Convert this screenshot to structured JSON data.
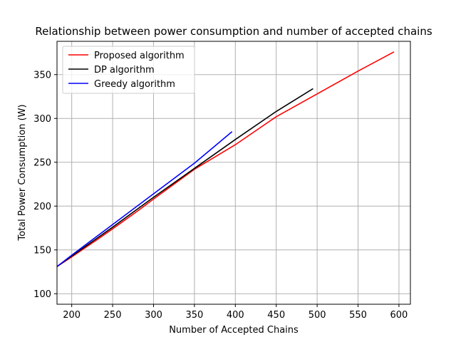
{
  "chart_data": {
    "type": "line",
    "title": "Relationship between power consumption and number of accepted chains",
    "xlabel": "Number of Accepted Chains",
    "ylabel": "Total Power Consumption (W)",
    "xlim": [
      182,
      614
    ],
    "ylim": [
      88,
      388
    ],
    "xticks": [
      200,
      250,
      300,
      350,
      400,
      450,
      500,
      550,
      600
    ],
    "yticks": [
      100,
      150,
      200,
      250,
      300,
      350
    ],
    "grid": true,
    "legend_position": "top-left",
    "series": [
      {
        "name": "Proposed algorithm",
        "color": "#ff0000",
        "points": [
          [
            182,
            131
          ],
          [
            200,
            142
          ],
          [
            230,
            161
          ],
          [
            250,
            174
          ],
          [
            280,
            194
          ],
          [
            300,
            208
          ],
          [
            350,
            242
          ],
          [
            400,
            270
          ],
          [
            450,
            302
          ],
          [
            500,
            328
          ],
          [
            550,
            354
          ],
          [
            594,
            376
          ]
        ]
      },
      {
        "name": "DP algorithm",
        "color": "#000000",
        "points": [
          [
            182,
            131
          ],
          [
            200,
            143
          ],
          [
            250,
            176
          ],
          [
            300,
            210
          ],
          [
            350,
            243
          ],
          [
            400,
            276
          ],
          [
            450,
            308
          ],
          [
            495,
            334
          ]
        ]
      },
      {
        "name": "Greedy algorithm",
        "color": "#0000ff",
        "points": [
          [
            182,
            131
          ],
          [
            200,
            144
          ],
          [
            250,
            179
          ],
          [
            300,
            214
          ],
          [
            350,
            249
          ],
          [
            396,
            285
          ]
        ]
      }
    ]
  }
}
